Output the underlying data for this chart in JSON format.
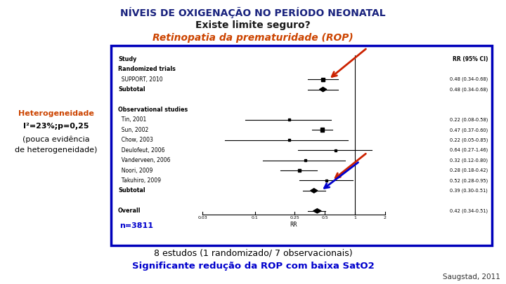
{
  "title_line1": "NÍVEIS DE OXIGENAÇÃO NO PERÍODO NEONATAL",
  "title_line2": "Existe limite seguro?",
  "title_line3": "Retinopatia da prematuridade (ROP)",
  "title_color1": "#1a237e",
  "title_color2": "#1a1a1a",
  "title_color3": "#cc4400",
  "left_text_bold": "Heterogeneidade",
  "left_text_line2": "I²=23%;p=0,25",
  "left_text_line3": "(pouca evidência",
  "left_text_line4": "de heterogeneidade)",
  "left_text_color": "#cc4400",
  "left_text_color2": "#000000",
  "bottom_line1": "8 estudos (1 randomizado/ 7 observacionais)",
  "bottom_line2": "Significante redução da ROP com baixa SatO2",
  "bottom_line2_color": "#0000cc",
  "bottom_line1_color": "#000000",
  "reference": "Saugstad, 2011",
  "n_label": "n=3811",
  "n_label_color": "#0000cc",
  "bg_color": "#ffffff",
  "box_bg": "#ffffff",
  "box_border_color": "#0000bb",
  "studies": [
    {
      "label": "Study",
      "rr": null,
      "lo": null,
      "hi": null,
      "type": "header_main"
    },
    {
      "label": "Randomized trials",
      "rr": null,
      "lo": null,
      "hi": null,
      "type": "header"
    },
    {
      "label": "  SUPPORT, 2010",
      "rr": 0.48,
      "lo": 0.34,
      "hi": 0.68,
      "type": "study",
      "sq": 0.011
    },
    {
      "label": "Subtotal",
      "rr": 0.48,
      "lo": 0.34,
      "hi": 0.68,
      "type": "subtotal",
      "sq": 0.009
    },
    {
      "label": "",
      "rr": null,
      "lo": null,
      "hi": null,
      "type": "spacer"
    },
    {
      "label": "Observational studies",
      "rr": null,
      "lo": null,
      "hi": null,
      "type": "header"
    },
    {
      "label": "  Tin, 2001",
      "rr": 0.22,
      "lo": 0.08,
      "hi": 0.58,
      "type": "study",
      "sq": 0.006
    },
    {
      "label": "  Sun, 2002",
      "rr": 0.47,
      "lo": 0.37,
      "hi": 0.6,
      "type": "study",
      "sq": 0.012
    },
    {
      "label": "  Chow, 2003",
      "rr": 0.22,
      "lo": 0.05,
      "hi": 0.85,
      "type": "study",
      "sq": 0.006
    },
    {
      "label": "  Deulofeut, 2006",
      "rr": 0.64,
      "lo": 0.27,
      "hi": 1.46,
      "type": "study",
      "sq": 0.006
    },
    {
      "label": "  Vanderveen, 2006",
      "rr": 0.32,
      "lo": 0.12,
      "hi": 0.8,
      "type": "study",
      "sq": 0.006
    },
    {
      "label": "  Noori, 2009",
      "rr": 0.28,
      "lo": 0.18,
      "hi": 0.42,
      "type": "study",
      "sq": 0.009
    },
    {
      "label": "  Takuhiro, 2009",
      "rr": 0.52,
      "lo": 0.28,
      "hi": 0.95,
      "type": "study",
      "sq": 0.007
    },
    {
      "label": "Subtotal",
      "rr": 0.39,
      "lo": 0.3,
      "hi": 0.51,
      "type": "subtotal",
      "sq": 0.009
    },
    {
      "label": "",
      "rr": null,
      "lo": null,
      "hi": null,
      "type": "spacer"
    },
    {
      "label": "Overall",
      "rr": 0.42,
      "lo": 0.34,
      "hi": 0.51,
      "type": "overall",
      "sq": 0.01
    }
  ],
  "rr_texts": [
    "",
    "",
    "0.48 (0.34-0.68)",
    "0.48 (0.34-0.68)",
    "",
    "",
    "0.22 (0.08-0.58)",
    "0.47 (0.37-0.60)",
    "0.22 (0.05-0.85)",
    "0.64 (0.27-1.46)",
    "0.32 (0.12-0.80)",
    "0.28 (0.18-0.42)",
    "0.52 (0.28-0.95)",
    "0.39 (0.30-0.51)",
    "",
    "0.42 (0.34-0.51)"
  ],
  "tick_vals": [
    0.03,
    0.1,
    0.25,
    0.5,
    1.0,
    2.0
  ],
  "tick_labels": [
    "0.03",
    "0.1",
    "0.25",
    "0.5",
    "1",
    "2"
  ]
}
